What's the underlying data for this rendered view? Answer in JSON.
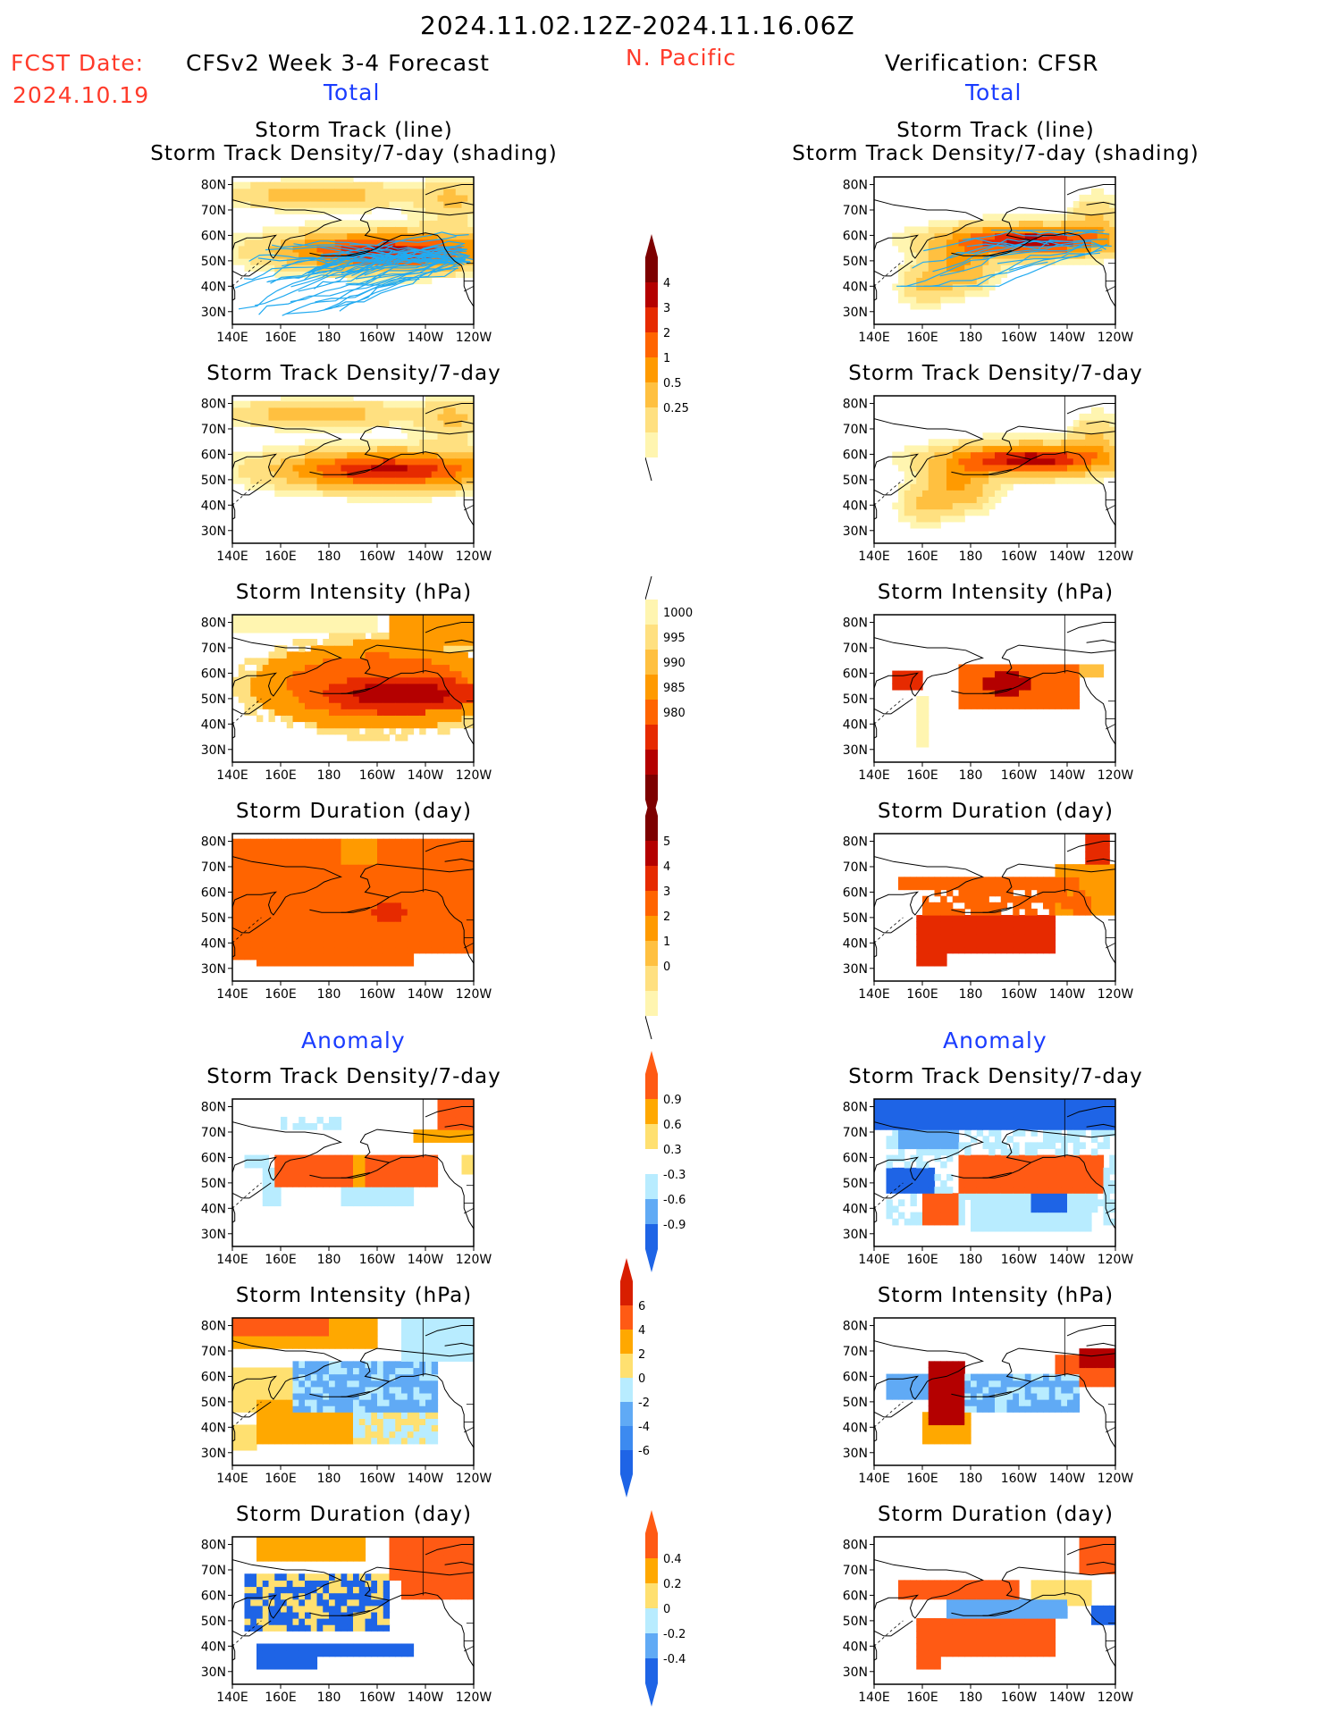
{
  "header": {
    "date_range": "2024.11.02.12Z-2024.11.16.06Z",
    "fcst_label": "FCST Date:",
    "fcst_date": "2024.10.19",
    "model": "CFSv2 Week 3-4 Forecast",
    "region": "N. Pacific",
    "verification": "Verification: CFSR",
    "total_left": "Total",
    "total_right": "Total",
    "anomaly_left": "Anomaly",
    "anomaly_right": "Anomaly"
  },
  "axes": {
    "lat_labels": [
      "80N",
      "70N",
      "60N",
      "50N",
      "40N",
      "30N"
    ],
    "lon_labels": [
      "140E",
      "160E",
      "180",
      "160W",
      "140W",
      "120W"
    ]
  },
  "panel_titles": {
    "track_line": "Storm Track (line)",
    "track_shading": "Storm Track Density/7-day (shading)",
    "density": "Storm Track Density/7-day",
    "intensity": "Storm Intensity (hPa)",
    "duration": "Storm Duration (day)"
  },
  "colorbars": {
    "density_total": [
      "4",
      "3",
      "2",
      "1",
      "0.5",
      "0.25"
    ],
    "intensity_total": [
      "1000",
      "995",
      "990",
      "985",
      "980"
    ],
    "duration_total": [
      "5",
      "4",
      "3",
      "2",
      "1",
      "0"
    ],
    "density_anom": [
      "0.9",
      "0.6",
      "0.3",
      "-0.3",
      "-0.6",
      "-0.9"
    ],
    "intensity_anom": [
      "6",
      "4",
      "2",
      "0",
      "-2",
      "-4",
      "-6"
    ],
    "duration_anom": [
      "0.4",
      "0.2",
      "0",
      "-0.2",
      "-0.4"
    ]
  },
  "colors": {
    "warm": [
      "#fff5b0",
      "#ffe080",
      "#ffc040",
      "#ff9a00",
      "#ff6400",
      "#e62a00",
      "#b40000",
      "#7d0000"
    ],
    "anom_pos": [
      "#ffe070",
      "#ffa800",
      "#ff5a14"
    ],
    "anom_neg": [
      "#b8ecff",
      "#60aaf5",
      "#1e64e6"
    ],
    "track_line": "#22aaf0"
  }
}
